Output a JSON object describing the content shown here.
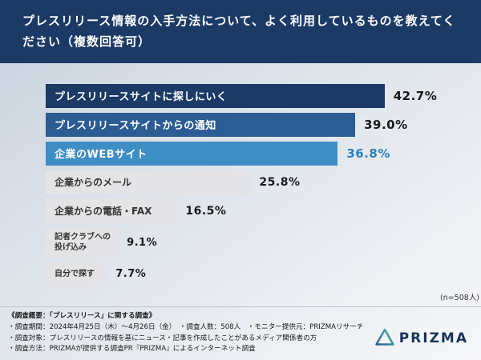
{
  "header": {
    "title": "プレスリリース情報の入手方法について、よく利用しているものを教えてください（複数回答可）"
  },
  "chart_data": {
    "type": "bar",
    "orientation": "horizontal",
    "title": "プレスリリース情報の入手方法",
    "categories": [
      "プレスリリースサイトに探しにいく",
      "プレスリリースサイトからの通知",
      "企業のWEBサイト",
      "企業からのメール",
      "企業からの電話・FAX",
      "記者クラブへの投げ込み",
      "自分で探す"
    ],
    "values": [
      42.7,
      39.0,
      36.8,
      25.8,
      16.5,
      9.1,
      7.7
    ],
    "value_labels": [
      "42.7%",
      "39.0%",
      "36.8%",
      "25.8%",
      "16.5%",
      "9.1%",
      "7.7%"
    ],
    "bar_colors": [
      "#1b3a66",
      "#2c5c94",
      "#3d8ec4",
      "#e4e4e6",
      "#e4e4e6",
      "#e4e4e6",
      "#e4e4e6"
    ],
    "label_colors": [
      "#ffffff",
      "#ffffff",
      "#ffffff",
      "#333333",
      "#333333",
      "#333333",
      "#333333"
    ],
    "value_colors": [
      "#1a1a1a",
      "#1a1a1a",
      "#2d7fc1",
      "#1a1a1a",
      "#1a1a1a",
      "#1a1a1a",
      "#1a1a1a"
    ],
    "xlim": [
      0,
      45
    ],
    "grid": false,
    "legend": false,
    "n_label": "(n=508人)"
  },
  "footer": {
    "lines": [
      "《調査概要：「プレスリリース」に関する調査》",
      "・調査期間：2024年4月25日（木）〜4月26日（金）　・調査人数：508人　・モニター提供元：PRIZMAリサーチ",
      "・調査対象：プレスリリースの情報を基にニュース・記事を作成したことがあるメディア関係者の方",
      "・調査方法：PRIZMAが提供する調査PR『PRIZMA』によるインターネット調査"
    ]
  },
  "logo": {
    "text": "PRIZMA"
  }
}
